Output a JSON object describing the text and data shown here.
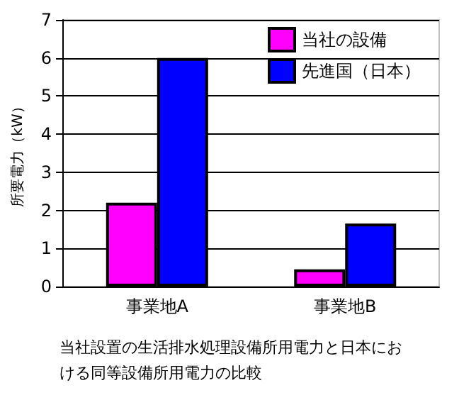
{
  "chart_data": {
    "type": "bar",
    "ylabel": "所要電力（kW）",
    "categories": [
      "事業地A",
      "事業地B"
    ],
    "series": [
      {
        "name": "当社の設備",
        "color": "#ff00ff",
        "values": [
          2.2,
          0.45
        ]
      },
      {
        "name": "先進国（日本）",
        "color": "#0000ff",
        "values": [
          6.0,
          1.65
        ]
      }
    ],
    "ylim": [
      0,
      7
    ],
    "yticks": [
      0,
      1,
      2,
      3,
      4,
      5,
      6,
      7
    ],
    "grid": "y",
    "legend": "top right",
    "annotations": [
      "当社設置の生活排水処理設備所用電力と日本における同等設備所用電力の比較"
    ]
  }
}
